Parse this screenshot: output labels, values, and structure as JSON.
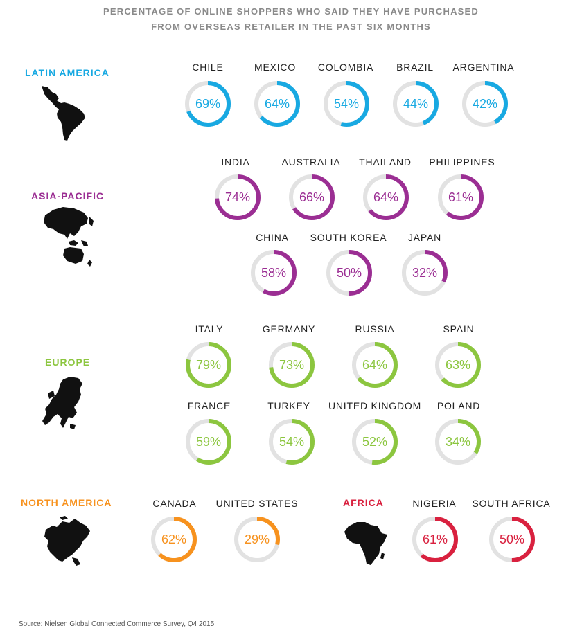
{
  "title": {
    "line1": "PERCENTAGE OF ONLINE SHOPPERS WHO SAID THEY HAVE PURCHASED",
    "line2": "FROM OVERSEAS RETAILER IN THE PAST SIX MONTHS"
  },
  "source": "Source: Nielsen Global Connected Commerce Survey, Q4 2015",
  "colors": {
    "latin_america": "#18a9e2",
    "asia_pacific": "#9b2e93",
    "europe": "#8cc63f",
    "north_america": "#f7921e",
    "africa": "#d9213f",
    "track": "#e2e2e2",
    "map": "#111111"
  },
  "regions": {
    "latin_america": "LATIN AMERICA",
    "asia_pacific": "ASIA-PACIFIC",
    "europe": "EUROPE",
    "north_america": "NORTH AMERICA",
    "africa": "AFRICA"
  },
  "chart_data": {
    "type": "donut",
    "unit": "%",
    "max": 100,
    "title": "PERCENTAGE OF ONLINE SHOPPERS WHO SAID THEY HAVE PURCHASED FROM OVERSEAS RETAILER IN THE PAST SIX MONTHS",
    "groups": [
      {
        "region": "LATIN AMERICA",
        "items": [
          {
            "country": "CHILE",
            "value": 69
          },
          {
            "country": "MEXICO",
            "value": 64
          },
          {
            "country": "COLOMBIA",
            "value": 54
          },
          {
            "country": "BRAZIL",
            "value": 44
          },
          {
            "country": "ARGENTINA",
            "value": 42
          }
        ]
      },
      {
        "region": "ASIA-PACIFIC",
        "items": [
          {
            "country": "INDIA",
            "value": 74
          },
          {
            "country": "AUSTRALIA",
            "value": 66
          },
          {
            "country": "THAILAND",
            "value": 64
          },
          {
            "country": "PHILIPPINES",
            "value": 61
          },
          {
            "country": "CHINA",
            "value": 58
          },
          {
            "country": "SOUTH KOREA",
            "value": 50
          },
          {
            "country": "JAPAN",
            "value": 32
          }
        ]
      },
      {
        "region": "EUROPE",
        "items": [
          {
            "country": "ITALY",
            "value": 79
          },
          {
            "country": "GERMANY",
            "value": 73
          },
          {
            "country": "RUSSIA",
            "value": 64
          },
          {
            "country": "SPAIN",
            "value": 63
          },
          {
            "country": "FRANCE",
            "value": 59
          },
          {
            "country": "TURKEY",
            "value": 54
          },
          {
            "country": "UNITED KINGDOM",
            "value": 52
          },
          {
            "country": "POLAND",
            "value": 34
          }
        ]
      },
      {
        "region": "NORTH AMERICA",
        "items": [
          {
            "country": "CANADA",
            "value": 62
          },
          {
            "country": "UNITED STATES",
            "value": 29
          }
        ]
      },
      {
        "region": "AFRICA",
        "items": [
          {
            "country": "NIGERIA",
            "value": 61
          },
          {
            "country": "SOUTH AFRICA",
            "value": 50
          }
        ]
      }
    ]
  }
}
